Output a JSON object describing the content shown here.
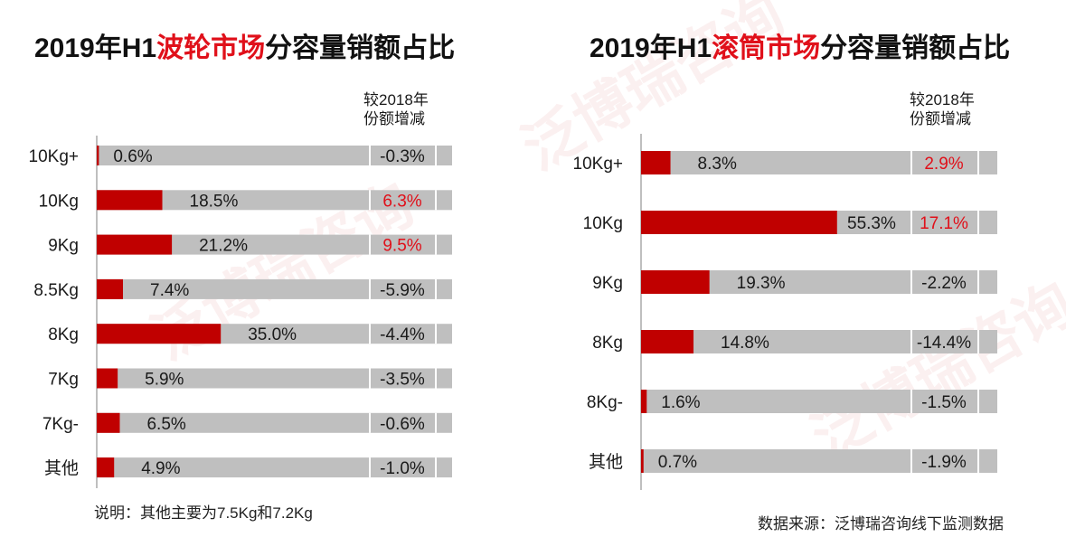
{
  "watermark": "泛博瑞咨询",
  "left": {
    "title_pre": "2019年H1",
    "title_hl": "波轮市场",
    "title_post": "分容量销额占比",
    "change_header": [
      "较2018年",
      "份额增减"
    ],
    "footnote": "说明：其他主要为7.5Kg和7.2Kg"
  },
  "right": {
    "title_pre": "2019年H1",
    "title_hl": "滚筒市场",
    "title_post": "分容量销额占比",
    "change_header": [
      "较2018年",
      "份额增减"
    ],
    "source": "数据来源：泛博瑞咨询线下监测数据"
  },
  "colors": {
    "bar": "#c00000",
    "track": "#bfbfbf",
    "highlight": "#e0101a",
    "text": "#1a1a1a"
  },
  "chart_data": [
    {
      "type": "bar",
      "orientation": "horizontal",
      "title": "2019年H1波轮市场分容量销额占比",
      "categories": [
        "10Kg+",
        "10Kg",
        "9Kg",
        "8.5Kg",
        "8Kg",
        "7Kg",
        "7Kg-",
        "其他"
      ],
      "series": [
        {
          "values": [
            0.6,
            18.5,
            21.2,
            7.4,
            35.0,
            5.9,
            6.5,
            4.9
          ]
        }
      ],
      "labels": [
        "0.6%",
        "18.5%",
        "21.2%",
        "7.4%",
        "35.0%",
        "5.9%",
        "6.5%",
        "4.9%"
      ],
      "change_vs_2018": [
        "-0.3%",
        "6.3%",
        "9.5%",
        "-5.9%",
        "-4.4%",
        "-3.5%",
        "-0.6%",
        "-1.0%"
      ],
      "change_highlight": [
        false,
        true,
        true,
        false,
        false,
        false,
        false,
        false
      ],
      "xlim": [
        0,
        100
      ]
    },
    {
      "type": "bar",
      "orientation": "horizontal",
      "title": "2019年H1滚筒市场分容量销额占比",
      "categories": [
        "10Kg+",
        "10Kg",
        "9Kg",
        "8Kg",
        "8Kg-",
        "其他"
      ],
      "series": [
        {
          "values": [
            8.3,
            55.3,
            19.3,
            14.8,
            1.6,
            0.7
          ]
        }
      ],
      "labels": [
        "8.3%",
        "55.3%",
        "19.3%",
        "14.8%",
        "1.6%",
        "0.7%"
      ],
      "change_vs_2018": [
        "2.9%",
        "17.1%",
        "-2.2%",
        "-14.4%",
        "-1.5%",
        "-1.9%"
      ],
      "change_highlight": [
        true,
        true,
        false,
        false,
        false,
        false
      ],
      "xlim": [
        0,
        100
      ]
    }
  ]
}
